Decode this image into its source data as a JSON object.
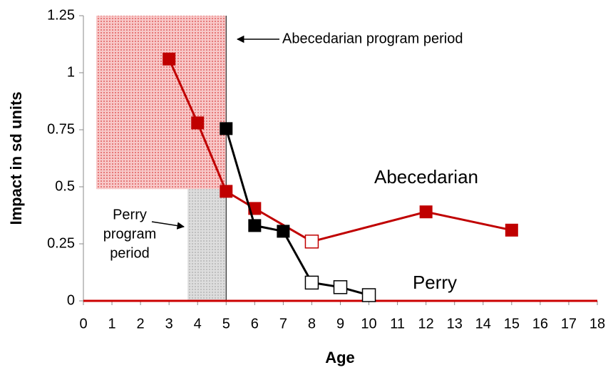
{
  "chart_data": {
    "type": "line",
    "x_label": "Age",
    "y_label": "Impact in sd units",
    "xlim": [
      0,
      18
    ],
    "xticks": [
      0,
      1,
      2,
      3,
      4,
      5,
      6,
      7,
      8,
      9,
      10,
      11,
      12,
      13,
      14,
      15,
      16,
      17,
      18
    ],
    "ylim": [
      0,
      1.25
    ],
    "yticks": [
      0,
      0.25,
      0.5,
      0.75,
      1,
      1.25
    ],
    "grid": false,
    "zero_line_color": "#cc0000",
    "series": [
      {
        "name": "Abecedarian",
        "color": "#c00000",
        "x": [
          3,
          4,
          5,
          6,
          8,
          12,
          15
        ],
        "values": [
          1.06,
          0.78,
          0.48,
          0.405,
          0.26,
          0.39,
          0.31
        ],
        "filled": [
          true,
          true,
          true,
          true,
          false,
          true,
          true
        ]
      },
      {
        "name": "Perry",
        "color": "#000000",
        "x": [
          5,
          6,
          7,
          8,
          9,
          10
        ],
        "values": [
          0.755,
          0.33,
          0.305,
          0.08,
          0.06,
          0.025
        ],
        "filled": [
          true,
          true,
          true,
          false,
          false,
          false
        ]
      }
    ],
    "vline": 5,
    "shaded_regions": [
      {
        "x": [
          0.45,
          5
        ],
        "y": [
          0.49,
          1.25
        ],
        "color": "#f2a0a0"
      },
      {
        "x": [
          3.65,
          5
        ],
        "y": [
          0,
          0.49
        ],
        "color": "#c8c8c8"
      }
    ],
    "annotations": {
      "abecedarian_period": "Abecedarian program period",
      "perry_period": [
        "Perry",
        "program",
        "period"
      ]
    }
  }
}
